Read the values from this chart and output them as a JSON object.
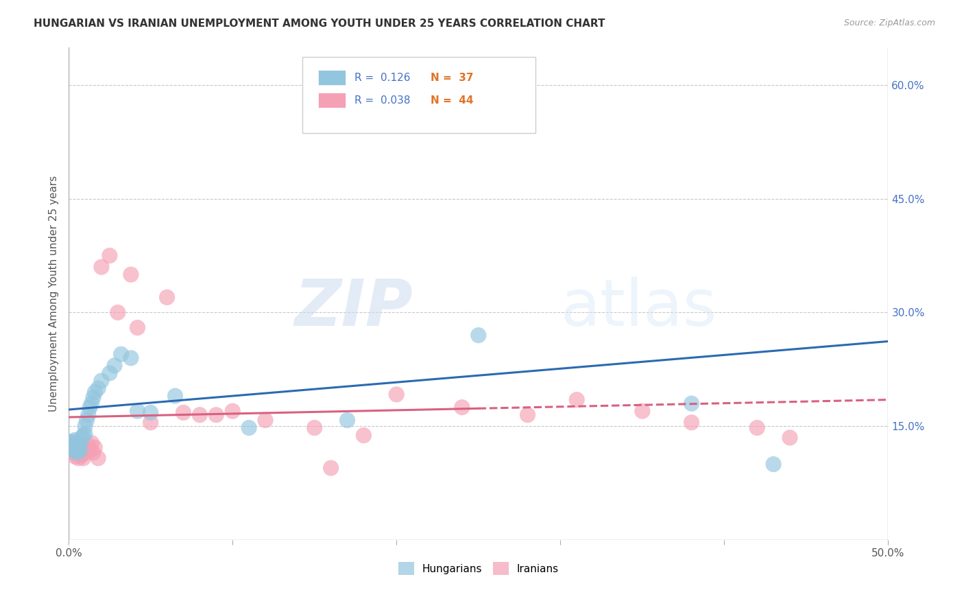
{
  "title": "HUNGARIAN VS IRANIAN UNEMPLOYMENT AMONG YOUTH UNDER 25 YEARS CORRELATION CHART",
  "source": "Source: ZipAtlas.com",
  "ylabel": "Unemployment Among Youth under 25 years",
  "xlim": [
    0.0,
    0.5
  ],
  "ylim": [
    0.0,
    0.65
  ],
  "yticks": [
    0.15,
    0.3,
    0.45,
    0.6
  ],
  "ytick_labels": [
    "15.0%",
    "30.0%",
    "45.0%",
    "60.0%"
  ],
  "xticks": [
    0.0,
    0.1,
    0.2,
    0.3,
    0.4,
    0.5
  ],
  "xtick_labels": [
    "0.0%",
    "",
    "",
    "",
    "",
    "50.0%"
  ],
  "hungarian_R": "0.126",
  "hungarian_N": "37",
  "iranian_R": "0.038",
  "iranian_N": "44",
  "hungarian_color": "#92c5de",
  "iranian_color": "#f4a0b5",
  "hungarian_line_color": "#2b6ab1",
  "iranian_line_color": "#d96080",
  "background_color": "#ffffff",
  "grid_color": "#c8c8c8",
  "watermark_zip": "ZIP",
  "watermark_atlas": "atlas",
  "hun_trend_start": 0.172,
  "hun_trend_end": 0.262,
  "iran_trend_start": 0.162,
  "iran_trend_end": 0.185,
  "hungarian_x": [
    0.001,
    0.002,
    0.002,
    0.003,
    0.003,
    0.004,
    0.004,
    0.005,
    0.005,
    0.006,
    0.006,
    0.007,
    0.007,
    0.008,
    0.009,
    0.01,
    0.01,
    0.011,
    0.012,
    0.013,
    0.014,
    0.015,
    0.016,
    0.018,
    0.02,
    0.025,
    0.028,
    0.032,
    0.038,
    0.042,
    0.05,
    0.065,
    0.11,
    0.17,
    0.25,
    0.38,
    0.43
  ],
  "hungarian_y": [
    0.128,
    0.13,
    0.122,
    0.125,
    0.118,
    0.132,
    0.12,
    0.126,
    0.115,
    0.13,
    0.12,
    0.128,
    0.118,
    0.135,
    0.138,
    0.14,
    0.15,
    0.158,
    0.165,
    0.175,
    0.18,
    0.188,
    0.195,
    0.2,
    0.21,
    0.22,
    0.23,
    0.245,
    0.24,
    0.17,
    0.168,
    0.19,
    0.148,
    0.158,
    0.27,
    0.18,
    0.1
  ],
  "iranian_x": [
    0.001,
    0.002,
    0.003,
    0.003,
    0.004,
    0.004,
    0.005,
    0.006,
    0.006,
    0.007,
    0.008,
    0.008,
    0.009,
    0.01,
    0.011,
    0.012,
    0.013,
    0.014,
    0.015,
    0.016,
    0.018,
    0.02,
    0.025,
    0.03,
    0.038,
    0.042,
    0.06,
    0.08,
    0.1,
    0.12,
    0.15,
    0.18,
    0.2,
    0.24,
    0.28,
    0.31,
    0.35,
    0.38,
    0.42,
    0.44,
    0.05,
    0.07,
    0.09,
    0.16
  ],
  "iranian_y": [
    0.128,
    0.12,
    0.125,
    0.115,
    0.122,
    0.11,
    0.118,
    0.126,
    0.108,
    0.115,
    0.12,
    0.112,
    0.108,
    0.115,
    0.12,
    0.125,
    0.118,
    0.128,
    0.115,
    0.122,
    0.108,
    0.36,
    0.375,
    0.3,
    0.35,
    0.28,
    0.32,
    0.165,
    0.17,
    0.158,
    0.148,
    0.138,
    0.192,
    0.175,
    0.165,
    0.185,
    0.17,
    0.155,
    0.148,
    0.135,
    0.155,
    0.168,
    0.165,
    0.095
  ]
}
